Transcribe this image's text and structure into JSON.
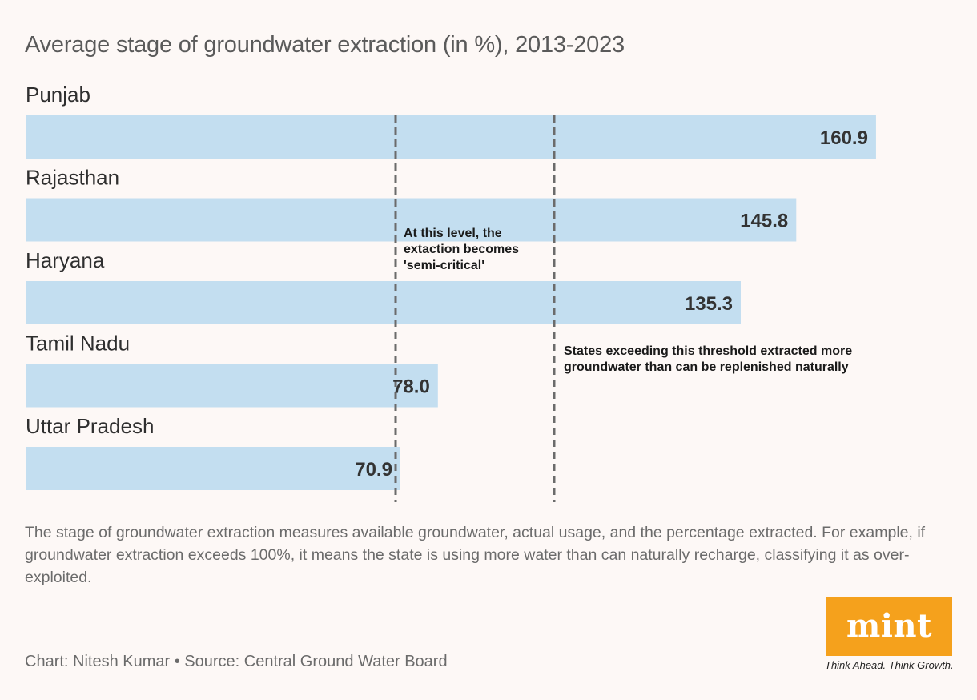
{
  "title": "Average stage of groundwater extraction (in %), 2013-2023",
  "chart_data": {
    "type": "bar",
    "orientation": "horizontal",
    "title": "Average stage of groundwater extraction (in %), 2013-2023",
    "categories": [
      "Punjab",
      "Rajasthan",
      "Haryana",
      "Tamil Nadu",
      "Uttar Pradesh"
    ],
    "values": [
      160.9,
      145.8,
      135.3,
      78.0,
      70.9
    ],
    "value_labels": [
      "160.9",
      "145.8",
      "135.3",
      "78.0",
      "70.9"
    ],
    "xlim": [
      0,
      165
    ],
    "xlabel": "",
    "ylabel": "",
    "bar_color": "#c3def0",
    "reference_lines": [
      {
        "name": "semi-critical",
        "value": 70,
        "label": "At this level, the extaction becomes 'semi-critical'"
      },
      {
        "name": "over-exploited",
        "value": 100,
        "label": "States exceeding this threshold extracted more groundwater than can be replenished naturally"
      }
    ]
  },
  "annotations": {
    "semi_critical": "At this level, the extaction becomes 'semi-critical'",
    "over_exploited": "States exceeding this threshold extracted more groundwater than can be replenished naturally"
  },
  "note": "The stage of groundwater extraction measures available groundwater, actual usage, and the percentage extracted. For example, if groundwater extraction exceeds 100%, it means the state is using more water than can naturally recharge, classifying it as over-exploited.",
  "credit": "Chart: Nitesh Kumar • Source: Central Ground Water Board",
  "logo": {
    "word": "mint",
    "tagline": "Think Ahead. Think Growth.",
    "color": "#f5a11c"
  }
}
